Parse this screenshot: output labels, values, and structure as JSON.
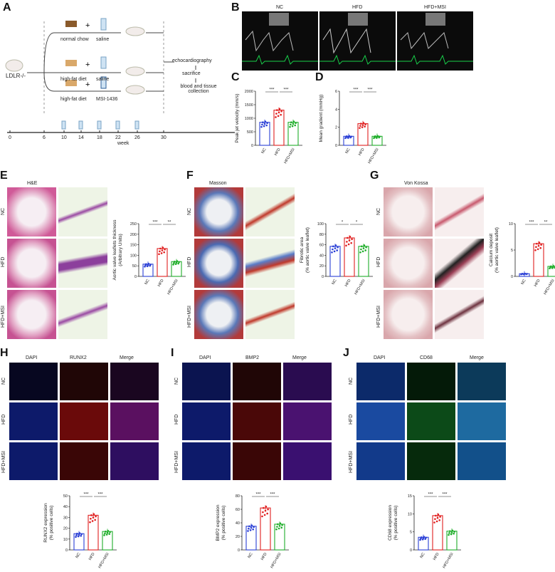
{
  "panels": {
    "A": "A",
    "B": "B",
    "C": "C",
    "D": "D",
    "E": "E",
    "F": "F",
    "G": "G",
    "H": "H",
    "I": "I",
    "J": "J"
  },
  "schema": {
    "mouse_label": "LDLR-/-",
    "rows": [
      {
        "diet": "normal chow",
        "treatment": "saline"
      },
      {
        "diet": "high-fat diet",
        "treatment": "saline"
      },
      {
        "diet": "high-fat diet",
        "treatment": "MSI-1436"
      }
    ],
    "outcomes": [
      "echocardiography",
      "sacrifice",
      "blood and tissue collection"
    ],
    "timeline_ticks": [
      "0",
      "6",
      "10",
      "14",
      "18",
      "22",
      "26",
      "30"
    ],
    "timeline_label": "week"
  },
  "groups": [
    "NC",
    "HFD",
    "HFD+MSI"
  ],
  "colors": {
    "NC": "#2a3fd6",
    "HFD": "#e02020",
    "HFD+MSI": "#1fae2a"
  },
  "stains": {
    "E": "H&E",
    "F": "Masson",
    "G": "Von Kossa"
  },
  "channels": {
    "H": [
      "DAPI",
      "RUNX2",
      "Merge"
    ],
    "I": [
      "DAPI",
      "BMP2",
      "Merge"
    ],
    "J": [
      "DAPI",
      "CD68",
      "Merge"
    ]
  },
  "chart_data": [
    {
      "panel": "C",
      "type": "bar",
      "categories": [
        "NC",
        "HFD",
        "HFD+MSI"
      ],
      "values": [
        850,
        1300,
        850
      ],
      "ylabel": "Peak jet velocity (mm/s)",
      "ylim": [
        0,
        2000
      ],
      "yticks": [
        "0",
        "500",
        "1000",
        "1500",
        "2000"
      ],
      "sig": [
        "***",
        "***"
      ]
    },
    {
      "panel": "D",
      "type": "bar",
      "categories": [
        "NC",
        "HFD",
        "HFD+MSI"
      ],
      "values": [
        1.0,
        2.4,
        1.0
      ],
      "ylabel": "Mean gradient (mmHg)",
      "ylim": [
        0,
        6
      ],
      "yticks": [
        "0",
        "2",
        "4",
        "6"
      ],
      "sig": [
        "***",
        "***"
      ]
    },
    {
      "panel": "E",
      "type": "bar",
      "categories": [
        "NC",
        "HFD",
        "HFD+MSI"
      ],
      "values": [
        58,
        132,
        70
      ],
      "ylabel": "Aortic valve leaflets thickness",
      "ylabel2": "(Arbitrary Units)",
      "ylim": [
        0,
        250
      ],
      "yticks": [
        "0",
        "50",
        "100",
        "150",
        "200",
        "250"
      ],
      "sig": [
        "***",
        "**"
      ]
    },
    {
      "panel": "F",
      "type": "bar",
      "categories": [
        "NC",
        "HFD",
        "HFD+MSI"
      ],
      "values": [
        57,
        73,
        57
      ],
      "ylabel": "Fibrotic area",
      "ylabel2": "(% aortic valve leaflet)",
      "ylim": [
        0,
        100
      ],
      "yticks": [
        "0",
        "20",
        "40",
        "60",
        "80",
        "100"
      ],
      "sig": [
        "*",
        "*"
      ]
    },
    {
      "panel": "G",
      "type": "bar",
      "categories": [
        "NC",
        "HFD",
        "HFD+MSI"
      ],
      "values": [
        0.5,
        6.2,
        1.9
      ],
      "ylabel": "Calcium deposit",
      "ylabel2": "(% aortic valve leaflet)",
      "ylim": [
        0,
        10
      ],
      "yticks": [
        "0",
        "5",
        "10"
      ],
      "sig": [
        "***",
        "**"
      ]
    },
    {
      "panel": "H",
      "type": "bar",
      "categories": [
        "NC",
        "HFD",
        "HFD+MSI"
      ],
      "values": [
        15,
        32,
        17
      ],
      "ylabel": "RUNX2 expression",
      "ylabel2": "(% positive cells)",
      "ylim": [
        0,
        50
      ],
      "yticks": [
        "0",
        "10",
        "20",
        "30",
        "40",
        "50"
      ],
      "sig": [
        "***",
        "***"
      ]
    },
    {
      "panel": "I",
      "type": "bar",
      "categories": [
        "NC",
        "HFD",
        "HFD+MSI"
      ],
      "values": [
        35,
        62,
        38
      ],
      "ylabel": "BMP2 expression",
      "ylabel2": "(% positive cells)",
      "ylim": [
        0,
        80
      ],
      "yticks": [
        "0",
        "20",
        "40",
        "60",
        "80"
      ],
      "sig": [
        "***",
        "***"
      ]
    },
    {
      "panel": "J",
      "type": "bar",
      "categories": [
        "NC",
        "HFD",
        "HFD+MSI"
      ],
      "values": [
        3.5,
        9.5,
        5.2
      ],
      "ylabel": "CD68 expression",
      "ylabel2": "(% positive cells)",
      "ylim": [
        0,
        15
      ],
      "yticks": [
        "0",
        "5",
        "10",
        "15"
      ],
      "sig": [
        "***",
        "***"
      ]
    }
  ]
}
